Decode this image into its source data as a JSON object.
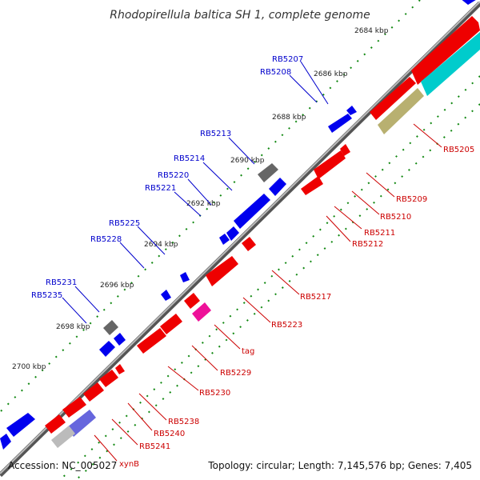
{
  "title": "Rhodopirellula baltica SH 1, complete genome",
  "footer": {
    "accession": "Accession: NC_005027",
    "summary": "Topology: circular; Length: 7,145,576 bp; Genes: 7,405"
  },
  "kbp_ticks": [
    "2684 kbp",
    "2686 kbp",
    "2688 kbp",
    "2690 kbp",
    "2692 kbp",
    "2694 kbp",
    "2696 kbp",
    "2698 kbp",
    "2700 kbp"
  ],
  "genes_outer_labels": [
    "RB5207",
    "RB5208",
    "RB5213",
    "RB5214",
    "RB5220",
    "RB5221",
    "RB5225",
    "RB5228",
    "RB5231",
    "RB5235"
  ],
  "genes_inner_labels": [
    "RB5205",
    "RB5209",
    "RB5210",
    "RB5211",
    "RB5212",
    "RB5217",
    "RB5223",
    "tag",
    "RB5229",
    "RB5230",
    "RB5238",
    "RB5240",
    "RB5241",
    "xynB"
  ],
  "colors": {
    "backbone": "#888888",
    "forward_strand": "#0000ee",
    "reverse_strand": "#ee0000",
    "rna": "#ee1199",
    "pseudo": "#777777",
    "cyan": "#00cccc",
    "olive": "#b8b070",
    "periwinkle": "#6666dd",
    "light_gray": "#bbbbbb",
    "tick_green": "#118811",
    "outer_label": "#0000cc",
    "inner_label": "#cc0000"
  }
}
